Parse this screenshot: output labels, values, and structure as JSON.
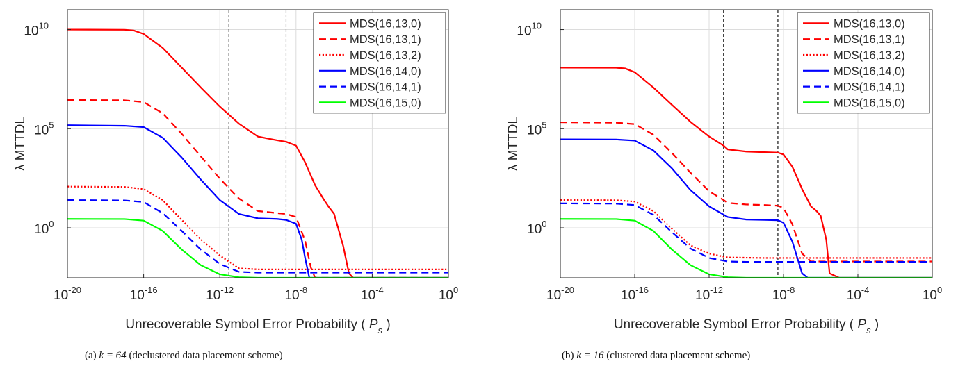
{
  "figure": {
    "captions": [
      {
        "label": "(a)",
        "math": "k = 64",
        "text": "(declustered data placement scheme)"
      },
      {
        "label": "(b)",
        "math": "k = 16",
        "text": "(clustered data placement scheme)"
      }
    ]
  },
  "chart_data": [
    {
      "type": "line",
      "xlabel": "Unrecoverable Symbol Error Probability ( P_s )",
      "ylabel": "λ MTTDL",
      "x_scale": "log",
      "y_scale": "log",
      "xlim": [
        1e-20,
        1
      ],
      "ylim": [
        0.003,
        100000000000.0
      ],
      "xticks": [
        {
          "exp": "-20",
          "value": 1e-20
        },
        {
          "exp": "-16",
          "value": 1e-16
        },
        {
          "exp": "-12",
          "value": 1e-12
        },
        {
          "exp": "-8",
          "value": 1e-08
        },
        {
          "exp": "-4",
          "value": 0.0001
        },
        {
          "exp": "0",
          "value": 1
        }
      ],
      "yticks": [
        {
          "exp": "0",
          "value": 1
        },
        {
          "exp": "5",
          "value": 100000.0
        },
        {
          "exp": "10",
          "value": 10000000000.0
        }
      ],
      "grid": true,
      "legend_position": "top-right",
      "vlines": [
        3e-12,
        3e-09
      ],
      "series": [
        {
          "name": "MDS(16,13,0)",
          "color": "#ff0000",
          "dash": "solid",
          "x": [
            1e-20,
            1e-17,
            3e-17,
            1e-16,
            1e-15,
            1e-14,
            1e-13,
            1e-12,
            1e-11,
            1e-10,
            1e-09,
            3e-09,
            1e-08,
            3e-08,
            1e-07,
            3e-07,
            5e-07,
            1e-06,
            3e-06,
            6e-06,
            1e-05,
            0.0001,
            1
          ],
          "y": [
            10000000000.0,
            9800000000.0,
            9000000000.0,
            6000000000.0,
            1200000000.0,
            120000000.0,
            12000000.0,
            1300000.0,
            180000.0,
            40000.0,
            26000.0,
            22000.0,
            14000.0,
            2000.0,
            140.0,
            25.0,
            12.0,
            5,
            0.12,
            0.005,
            0.003,
            0.003,
            0.003
          ]
        },
        {
          "name": "MDS(16,13,1)",
          "color": "#ff0000",
          "dash": "dashed",
          "x": [
            1e-20,
            1e-17,
            1e-16,
            1e-15,
            1e-14,
            1e-13,
            1e-12,
            1e-11,
            1e-10,
            1e-09,
            3e-09,
            1e-08,
            3e-08,
            6e-08,
            1e-07,
            2e-07,
            1e-06,
            1
          ],
          "y": [
            2800000.0,
            2700000.0,
            2200000.0,
            600000.0,
            55000.0,
            4000.0,
            300.0,
            30.0,
            7,
            5.5,
            5,
            3.5,
            0.22,
            0.01,
            0.003,
            0.003,
            0.003,
            0.003
          ]
        },
        {
          "name": "MDS(16,13,2)",
          "color": "#ff0000",
          "dash": "dotted",
          "x": [
            1e-20,
            1e-17,
            1e-16,
            1e-15,
            1e-14,
            1e-13,
            1e-12,
            1e-11,
            1e-10,
            1e-09,
            1e-08,
            1e-06,
            0.0001,
            1
          ],
          "y": [
            120.0,
            115.0,
            90.0,
            25.0,
            2.5,
            0.26,
            0.04,
            0.009,
            0.008,
            0.008,
            0.008,
            0.008,
            0.008,
            0.008
          ]
        },
        {
          "name": "MDS(16,14,0)",
          "color": "#0000ff",
          "dash": "solid",
          "x": [
            1e-20,
            1e-17,
            1e-16,
            1e-15,
            1e-14,
            1e-13,
            1e-12,
            1e-11,
            1e-10,
            1e-09,
            3e-09,
            1e-08,
            2e-08,
            3e-08,
            5e-08,
            1e-07,
            1
          ],
          "y": [
            150000.0,
            140000.0,
            120000.0,
            35000.0,
            3500.0,
            270.0,
            25.0,
            5,
            3,
            2.8,
            2.5,
            1.6,
            0.25,
            0.03,
            0.003,
            0.003,
            0.003
          ]
        },
        {
          "name": "MDS(16,14,1)",
          "color": "#0000ff",
          "dash": "dashed",
          "x": [
            1e-20,
            1e-17,
            1e-16,
            1e-15,
            1e-14,
            1e-13,
            1e-12,
            1e-11,
            1e-10,
            1e-09,
            1e-08,
            1e-06,
            0.0001,
            1
          ],
          "y": [
            25.0,
            24.0,
            20.0,
            5.5,
            0.7,
            0.08,
            0.015,
            0.006,
            0.0055,
            0.0055,
            0.0055,
            0.0055,
            0.0055,
            0.0055
          ]
        },
        {
          "name": "MDS(16,15,0)",
          "color": "#00ff00",
          "dash": "solid",
          "x": [
            1e-20,
            1e-17,
            1e-16,
            1e-15,
            1e-14,
            1e-13,
            1e-12,
            1e-11,
            1e-10,
            1e-09,
            1e-08,
            1e-06,
            0.0001,
            1
          ],
          "y": [
            2.8,
            2.75,
            2.3,
            0.7,
            0.08,
            0.013,
            0.0045,
            0.0032,
            0.003,
            0.003,
            0.003,
            0.003,
            0.003,
            0.003
          ]
        }
      ]
    },
    {
      "type": "line",
      "xlabel": "Unrecoverable Symbol Error Probability ( P_s )",
      "ylabel": "λ MTTDL",
      "x_scale": "log",
      "y_scale": "log",
      "xlim": [
        1e-20,
        1
      ],
      "ylim": [
        0.003,
        100000000000.0
      ],
      "xticks": [
        {
          "exp": "-20",
          "value": 1e-20
        },
        {
          "exp": "-16",
          "value": 1e-16
        },
        {
          "exp": "-12",
          "value": 1e-12
        },
        {
          "exp": "-8",
          "value": 1e-08
        },
        {
          "exp": "-4",
          "value": 0.0001
        },
        {
          "exp": "0",
          "value": 1
        }
      ],
      "yticks": [
        {
          "exp": "0",
          "value": 1
        },
        {
          "exp": "5",
          "value": 100000.0
        },
        {
          "exp": "10",
          "value": 10000000000.0
        }
      ],
      "grid": true,
      "legend_position": "top-right",
      "vlines": [
        6e-12,
        5e-09
      ],
      "series": [
        {
          "name": "MDS(16,13,0)",
          "color": "#ff0000",
          "dash": "solid",
          "x": [
            1e-20,
            1e-17,
            3e-17,
            1e-16,
            1e-15,
            1e-14,
            1e-13,
            1e-12,
            6e-12,
            1e-11,
            1e-10,
            1e-09,
            5e-09,
            1e-08,
            3e-08,
            1e-07,
            3e-07,
            6e-07,
            1e-06,
            2e-06,
            3e-06,
            1e-05,
            1
          ],
          "y": [
            120000000.0,
            118000000.0,
            110000000.0,
            70000000.0,
            12000000.0,
            1600000.0,
            220000.0,
            40000.0,
            14000.0,
            9000.0,
            7000.0,
            6500.0,
            6200.0,
            5000.0,
            1200.0,
            90.0,
            12.0,
            7,
            4,
            0.25,
            0.005,
            0.003,
            0.003
          ]
        },
        {
          "name": "MDS(16,13,1)",
          "color": "#ff0000",
          "dash": "dashed",
          "x": [
            1e-20,
            1e-17,
            1e-16,
            1e-15,
            1e-14,
            1e-13,
            1e-12,
            6e-12,
            1e-11,
            1e-10,
            1e-09,
            5e-09,
            1e-08,
            3e-08,
            1e-07,
            3e-07,
            1e-06,
            1
          ],
          "y": [
            210000.0,
            200000.0,
            170000.0,
            50000.0,
            6000.0,
            600.0,
            70.0,
            25.0,
            18.0,
            15.0,
            14.0,
            13.0,
            10.0,
            1.5,
            0.05,
            0.02,
            0.02,
            0.02
          ]
        },
        {
          "name": "MDS(16,13,2)",
          "color": "#ff0000",
          "dash": "dotted",
          "x": [
            1e-20,
            1e-17,
            1e-16,
            1e-15,
            1e-14,
            1e-13,
            1e-12,
            6e-12,
            1e-11,
            1e-10,
            1e-09,
            1e-08,
            1e-06,
            0.0001,
            1
          ],
          "y": [
            25.0,
            24.5,
            21.0,
            7,
            0.9,
            0.13,
            0.05,
            0.035,
            0.032,
            0.031,
            0.03,
            0.03,
            0.03,
            0.03,
            0.03
          ]
        },
        {
          "name": "MDS(16,14,0)",
          "color": "#0000ff",
          "dash": "solid",
          "x": [
            1e-20,
            1e-17,
            1e-16,
            1e-15,
            1e-14,
            1e-13,
            1e-12,
            1e-11,
            1e-10,
            1e-09,
            5e-09,
            1e-08,
            3e-08,
            1e-07,
            2e-07,
            3e-07,
            1
          ],
          "y": [
            29000.0,
            28500.0,
            25000.0,
            8000.0,
            1000.0,
            80.0,
            12.0,
            3.5,
            2.6,
            2.5,
            2.4,
            1.8,
            0.2,
            0.005,
            0.003,
            0.003,
            0.003
          ]
        },
        {
          "name": "MDS(16,14,1)",
          "color": "#0000ff",
          "dash": "dashed",
          "x": [
            1e-20,
            1e-17,
            1e-16,
            1e-15,
            1e-14,
            1e-13,
            1e-12,
            6e-12,
            1e-11,
            1e-10,
            1e-09,
            1e-08,
            1e-06,
            0.0001,
            1
          ],
          "y": [
            17.0,
            16.5,
            14.0,
            4.5,
            0.6,
            0.09,
            0.03,
            0.022,
            0.02,
            0.019,
            0.019,
            0.019,
            0.019,
            0.019,
            0.019
          ]
        },
        {
          "name": "MDS(16,15,0)",
          "color": "#00ff00",
          "dash": "solid",
          "x": [
            1e-20,
            1e-17,
            1e-16,
            1e-15,
            1e-14,
            1e-13,
            1e-12,
            1e-11,
            1e-10,
            1e-09,
            1e-08,
            1e-06,
            0.0001,
            1
          ],
          "y": [
            2.8,
            2.75,
            2.3,
            0.7,
            0.08,
            0.013,
            0.0045,
            0.0032,
            0.003,
            0.003,
            0.003,
            0.003,
            0.003,
            0.003
          ]
        }
      ]
    }
  ]
}
